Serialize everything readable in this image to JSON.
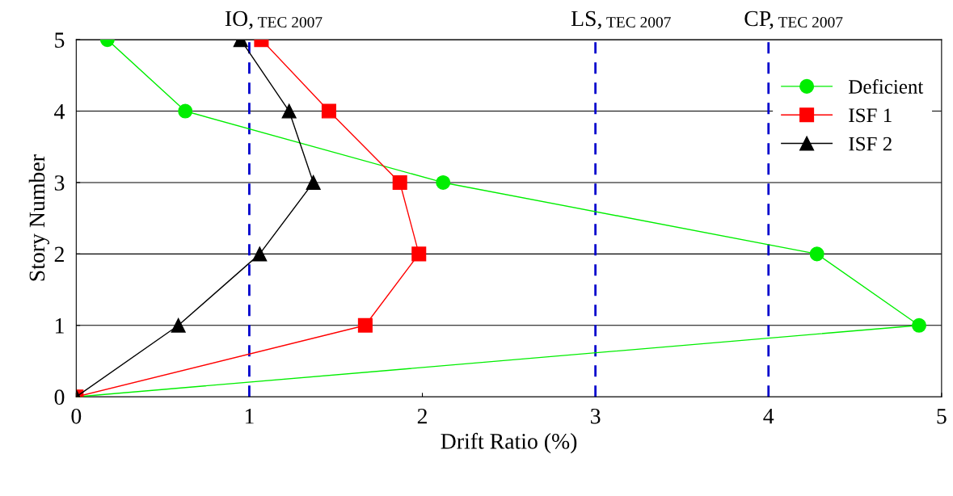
{
  "chart_data": {
    "type": "line",
    "xlabel": "Drift Ratio (%)",
    "ylabel": "Story Number",
    "xlim": [
      0,
      5
    ],
    "xticks": [
      0,
      1,
      2,
      3,
      4,
      5
    ],
    "ylim": [
      0,
      5
    ],
    "yticks": [
      0,
      1,
      2,
      3,
      4,
      5
    ],
    "grid": "y",
    "legend": "top right",
    "series": [
      {
        "name": "Deficient",
        "color": "#00ee00",
        "marker": "circle",
        "x": [
          0,
          4.87,
          4.28,
          2.12,
          0.63,
          0.18
        ],
        "values": [
          0,
          1,
          2,
          3,
          4,
          5
        ]
      },
      {
        "name": "ISF 1",
        "color": "#ff0000",
        "marker": "square",
        "x": [
          0,
          1.67,
          1.98,
          1.87,
          1.46,
          1.07
        ],
        "values": [
          0,
          1,
          2,
          3,
          4,
          5
        ]
      },
      {
        "name": "ISF 2",
        "color": "#000000",
        "marker": "triangle",
        "x": [
          0,
          0.59,
          1.06,
          1.37,
          1.23,
          0.95
        ],
        "values": [
          0,
          1,
          2,
          3,
          4,
          5
        ]
      }
    ],
    "ref_lines": [
      {
        "axis": "x",
        "value": 1,
        "label": "IO, TEC 2007",
        "color": "#0000cc",
        "line_style": "dashed"
      },
      {
        "axis": "x",
        "value": 3,
        "label": "LS, TEC 2007",
        "color": "#0000cc",
        "line_style": "dashed"
      },
      {
        "axis": "x",
        "value": 4,
        "label": "CP, TEC 2007",
        "color": "#0000cc",
        "line_style": "dashed"
      }
    ]
  }
}
